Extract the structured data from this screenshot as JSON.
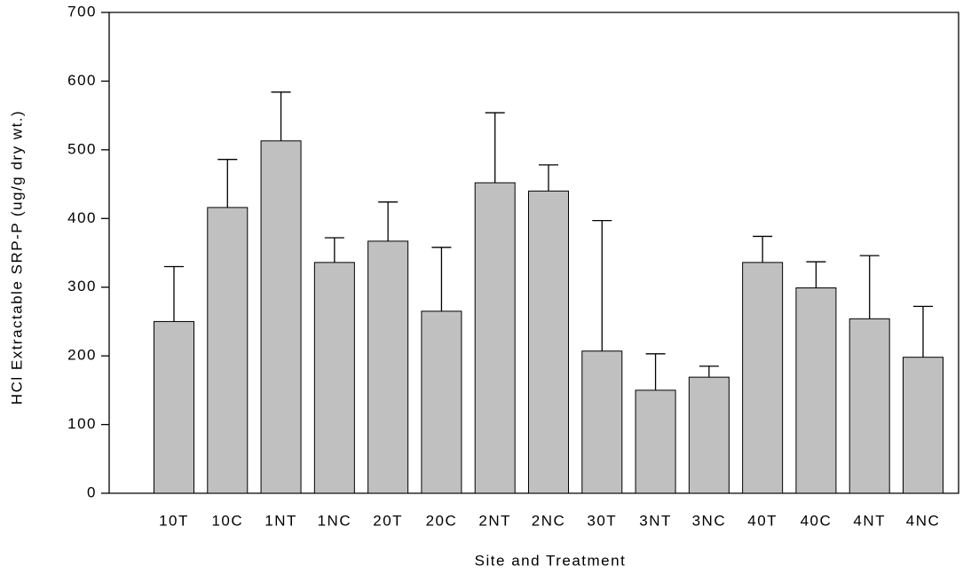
{
  "chart_data": {
    "type": "bar",
    "xlabel": "Site and Treatment",
    "ylabel": "HCl Extractable SRP-P (ug/g dry wt.)",
    "categories": [
      "10T",
      "10C",
      "1NT",
      "1NC",
      "20T",
      "20C",
      "2NT",
      "2NC",
      "30T",
      "3NT",
      "3NC",
      "40T",
      "40C",
      "4NT",
      "4NC"
    ],
    "values": [
      250,
      416,
      513,
      336,
      367,
      265,
      452,
      440,
      207,
      150,
      169,
      336,
      299,
      254,
      198
    ],
    "errors": [
      80,
      70,
      71,
      36,
      57,
      93,
      102,
      38,
      190,
      53,
      16,
      38,
      38,
      92,
      74
    ],
    "color": "#c0c0c0",
    "ylim": [
      0,
      700
    ],
    "yticks": [
      0,
      100,
      200,
      300,
      400,
      500,
      600,
      700
    ],
    "grid": false
  }
}
